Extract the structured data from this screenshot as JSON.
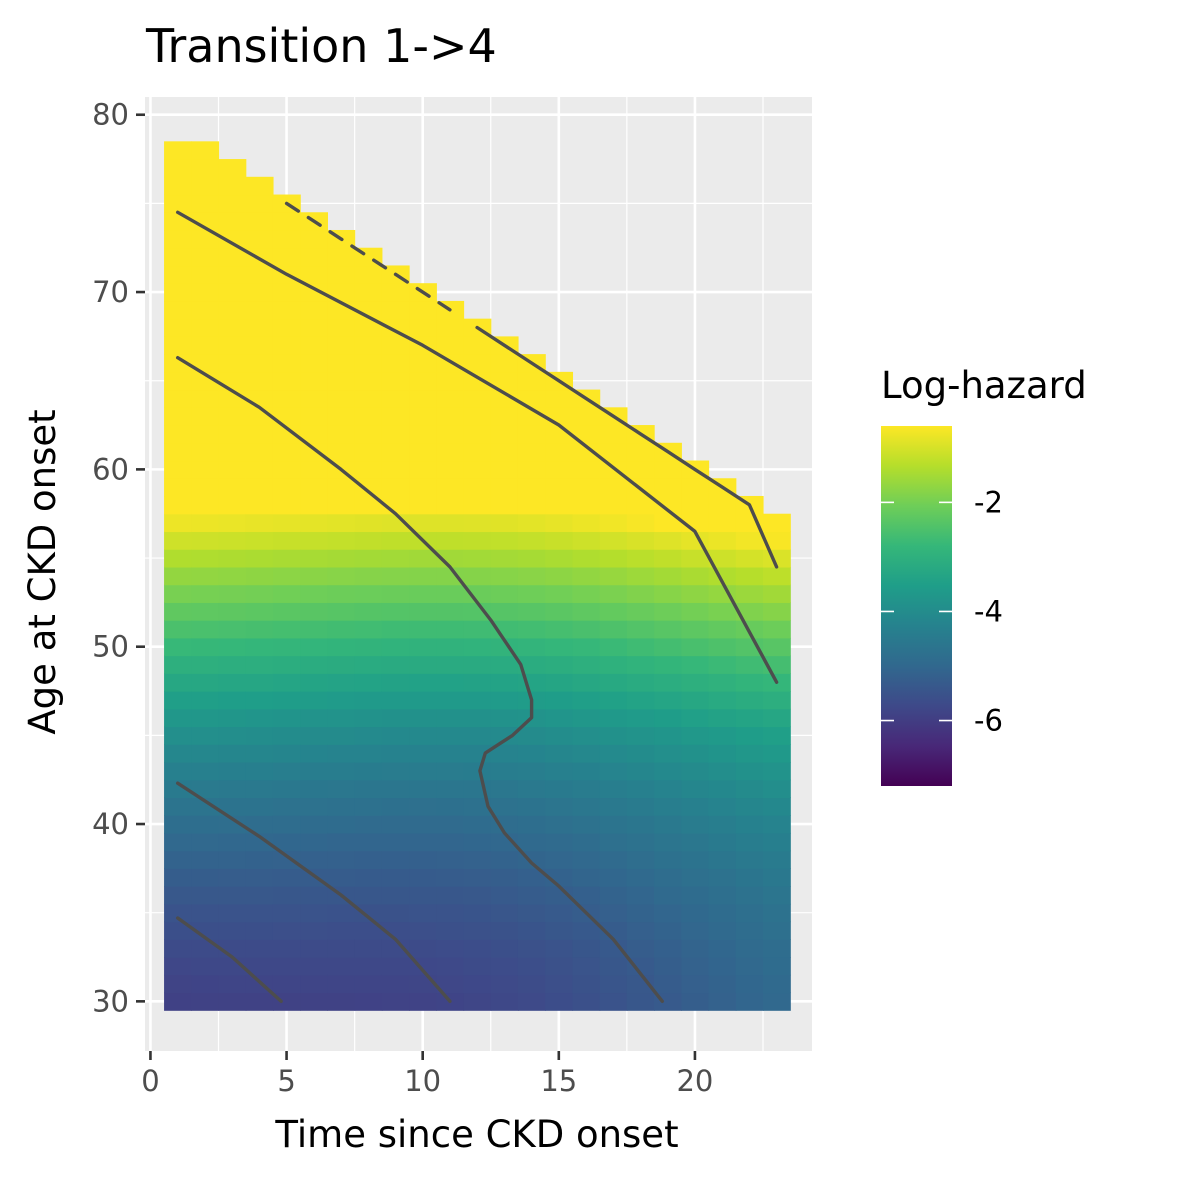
{
  "chart_data": {
    "type": "heatmap",
    "title": "Transition 1->4",
    "xlabel": "Time since CKD onset",
    "ylabel": "Age at CKD onset",
    "xlim": [
      -0.2,
      24.3
    ],
    "ylim": [
      27.2,
      81.0
    ],
    "x_ticks": [
      0,
      5,
      10,
      15,
      20
    ],
    "y_ticks": [
      30,
      40,
      50,
      60,
      70,
      80
    ],
    "grid": true,
    "tile_width": 1,
    "tile_height": 1,
    "x": [
      1,
      23
    ],
    "y": [
      30,
      78
    ],
    "domain": "x + y <= 80",
    "value_range": [
      -7.2,
      -0.6
    ],
    "value_model": {
      "a": -5.8,
      "b": 0.062,
      "c": 0.0048,
      "d": 0.022,
      "valley_center": 12.8,
      "valley_width": 10.5,
      "valley_depth": 0.55,
      "youth_age": 45,
      "youth_scale": 0.45
    },
    "legend": {
      "title": "Log-hazard",
      "position": "right",
      "ticks": [
        -2,
        -4,
        -6
      ],
      "palette": "viridis",
      "stops": [
        "#440154",
        "#482878",
        "#3e4989",
        "#31688e",
        "#26828e",
        "#1f9e89",
        "#35b779",
        "#6ece58",
        "#b5de2b",
        "#fde725"
      ]
    },
    "contours": [
      {
        "level": -1.5,
        "style": "dashed",
        "points": [
          [
            5,
            75
          ],
          [
            5.5,
            74.5
          ],
          [
            6,
            74
          ],
          [
            7,
            73
          ],
          [
            8,
            72
          ],
          [
            9,
            71
          ],
          [
            10,
            70
          ],
          [
            11,
            69
          ]
        ]
      },
      {
        "level": -1.5,
        "style": "solid",
        "points": [
          [
            12,
            68
          ],
          [
            13,
            67
          ],
          [
            14,
            66
          ],
          [
            15,
            65
          ],
          [
            16,
            64
          ],
          [
            17,
            63
          ],
          [
            18,
            62
          ],
          [
            19,
            61
          ],
          [
            20,
            60
          ],
          [
            21,
            59
          ],
          [
            22,
            58
          ],
          [
            23,
            54.5
          ]
        ]
      },
      {
        "level": -2.5,
        "style": "solid",
        "points": [
          [
            1,
            74.5
          ],
          [
            5,
            71
          ],
          [
            10,
            67
          ],
          [
            15,
            62.5
          ],
          [
            20,
            56.5
          ],
          [
            23,
            48
          ]
        ]
      },
      {
        "level": -3.5,
        "style": "solid",
        "points": [
          [
            1,
            66.3
          ],
          [
            4,
            63.5
          ],
          [
            7,
            60
          ],
          [
            9,
            57.5
          ],
          [
            11,
            54.5
          ],
          [
            12.5,
            51.5
          ],
          [
            13.6,
            49
          ],
          [
            14,
            47
          ],
          [
            14,
            46
          ],
          [
            13.3,
            45
          ],
          [
            12.8,
            44.5
          ],
          [
            12.3,
            44
          ],
          [
            12.1,
            43
          ],
          [
            12.4,
            41
          ],
          [
            13,
            39.5
          ],
          [
            14,
            37.8
          ],
          [
            15,
            36.5
          ],
          [
            17,
            33.5
          ],
          [
            18.8,
            30
          ]
        ]
      },
      {
        "level": -4.5,
        "style": "solid",
        "points": [
          [
            1,
            42.3
          ],
          [
            4,
            39.3
          ],
          [
            7,
            36
          ],
          [
            9,
            33.5
          ],
          [
            11,
            30
          ]
        ]
      },
      {
        "level": -5.5,
        "style": "solid",
        "points": [
          [
            1,
            34.7
          ],
          [
            3,
            32.5
          ],
          [
            4.8,
            30
          ]
        ]
      }
    ]
  }
}
